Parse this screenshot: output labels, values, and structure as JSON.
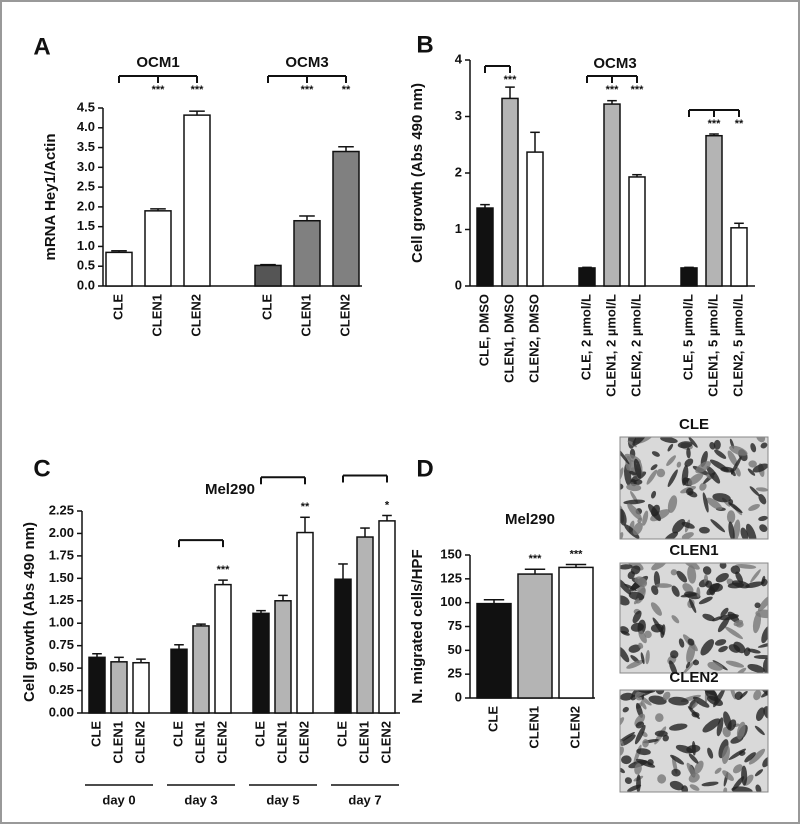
{
  "chart_data": [
    {
      "panel": "A",
      "type": "bar",
      "ylabel": "mRNA Hey1/Actin",
      "ylim": [
        0,
        4.5
      ],
      "yticks": [
        {
          "value": 0,
          "label": "0.0"
        },
        0.5,
        {
          "value": 1,
          "label": "1.0"
        },
        1.5,
        {
          "value": 2,
          "label": "2.0"
        },
        2.5,
        {
          "value": 3,
          "label": "3.0"
        },
        3.5,
        {
          "value": 4,
          "label": "4.0"
        },
        4.5
      ],
      "groups": [
        {
          "name": "OCM1",
          "categories": [
            "CLE",
            "CLEN1",
            "CLEN2"
          ],
          "values": [
            0.85,
            1.9,
            4.32
          ],
          "errors": [
            0.04,
            0.05,
            0.1
          ],
          "colors": [
            "#ffffff",
            "#ffffff",
            "#ffffff"
          ],
          "significance": [
            null,
            "***",
            "***"
          ]
        },
        {
          "name": "OCM3",
          "categories": [
            "CLE",
            "CLEN1",
            "CLEN2"
          ],
          "values": [
            0.52,
            1.65,
            3.4
          ],
          "errors": [
            0.02,
            0.12,
            0.12
          ],
          "colors": [
            "#555555",
            "#808080",
            "#808080"
          ],
          "significance": [
            null,
            "***",
            "**"
          ]
        }
      ]
    },
    {
      "panel": "B",
      "type": "bar",
      "title": "OCM3",
      "ylabel": "Cell growth (Abs 490 nm)",
      "ylim": [
        0,
        4
      ],
      "yticks": [
        0,
        1,
        2,
        3,
        4
      ],
      "groups": [
        {
          "categories": [
            "CLE, DMSO",
            "CLEN1, DMSO",
            "CLEN2, DMSO"
          ],
          "values": [
            1.38,
            3.32,
            2.37
          ],
          "errors": [
            0.06,
            0.2,
            0.35
          ],
          "colors": [
            "#111111",
            "#b4b4b4",
            "#ffffff"
          ],
          "significance": [
            null,
            "***",
            null
          ]
        },
        {
          "categories": [
            "CLE, 2 µmol/L",
            "CLEN1, 2 µmol/L",
            "CLEN2, 2 µmol/L"
          ],
          "values": [
            0.32,
            3.22,
            1.93
          ],
          "errors": [
            0.01,
            0.06,
            0.04
          ],
          "colors": [
            "#111111",
            "#b4b4b4",
            "#ffffff"
          ],
          "significance": [
            null,
            "***",
            "***"
          ]
        },
        {
          "categories": [
            "CLE, 5 µmol/L",
            "CLEN1, 5 µmol/L",
            "CLEN2, 5 µmol/L"
          ],
          "values": [
            0.32,
            2.66,
            1.03
          ],
          "errors": [
            0.01,
            0.03,
            0.08
          ],
          "colors": [
            "#111111",
            "#b4b4b4",
            "#ffffff"
          ],
          "significance": [
            null,
            "***",
            "**"
          ]
        }
      ]
    },
    {
      "panel": "C",
      "type": "bar",
      "title": "Mel290",
      "ylabel": "Cell growth (Abs 490 nm)",
      "ylim": [
        0,
        2.25
      ],
      "yticks": [
        {
          "value": 0,
          "label": "0.00"
        },
        0.25,
        {
          "value": 0.5,
          "label": "0.50"
        },
        0.75,
        {
          "value": 1,
          "label": "1.00"
        },
        1.25,
        {
          "value": 1.5,
          "label": "1.50"
        },
        1.75,
        {
          "value": 2,
          "label": "2.00"
        },
        2.25
      ],
      "groups": [
        {
          "name": "day 0",
          "categories": [
            "CLE",
            "CLEN1",
            "CLEN2"
          ],
          "values": [
            0.62,
            0.57,
            0.56
          ],
          "errors": [
            0.04,
            0.05,
            0.04
          ],
          "colors": [
            "#111111",
            "#b4b4b4",
            "#ffffff"
          ],
          "significance": [
            null,
            null,
            null
          ]
        },
        {
          "name": "day 3",
          "categories": [
            "CLE",
            "CLEN1",
            "CLEN2"
          ],
          "values": [
            0.71,
            0.97,
            1.43
          ],
          "errors": [
            0.05,
            0.02,
            0.05
          ],
          "colors": [
            "#111111",
            "#b4b4b4",
            "#ffffff"
          ],
          "significance": [
            null,
            null,
            "***"
          ]
        },
        {
          "name": "day 5",
          "categories": [
            "CLE",
            "CLEN1",
            "CLEN2"
          ],
          "values": [
            1.11,
            1.25,
            2.01
          ],
          "errors": [
            0.03,
            0.06,
            0.17
          ],
          "colors": [
            "#111111",
            "#b4b4b4",
            "#ffffff"
          ],
          "significance": [
            null,
            null,
            "**"
          ]
        },
        {
          "name": "day 7",
          "categories": [
            "CLE",
            "CLEN1",
            "CLEN2"
          ],
          "values": [
            1.49,
            1.96,
            2.14
          ],
          "errors": [
            0.17,
            0.1,
            0.06
          ],
          "colors": [
            "#111111",
            "#b4b4b4",
            "#ffffff"
          ],
          "significance": [
            null,
            null,
            "*"
          ]
        }
      ]
    },
    {
      "panel": "D",
      "type": "bar",
      "title": "Mel290",
      "ylabel": "N. migrated cells/HPF",
      "ylim": [
        0,
        150
      ],
      "yticks": [
        0,
        25,
        50,
        75,
        100,
        125,
        150
      ],
      "groups": [
        {
          "categories": [
            "CLE",
            "CLEN1",
            "CLEN2"
          ],
          "values": [
            99,
            130,
            137
          ],
          "errors": [
            4,
            5,
            3
          ],
          "colors": [
            "#111111",
            "#b4b4b4",
            "#ffffff"
          ],
          "significance": [
            null,
            "***",
            "***"
          ]
        }
      ],
      "image_labels": [
        "CLE",
        "CLEN1",
        "CLEN2"
      ]
    }
  ]
}
